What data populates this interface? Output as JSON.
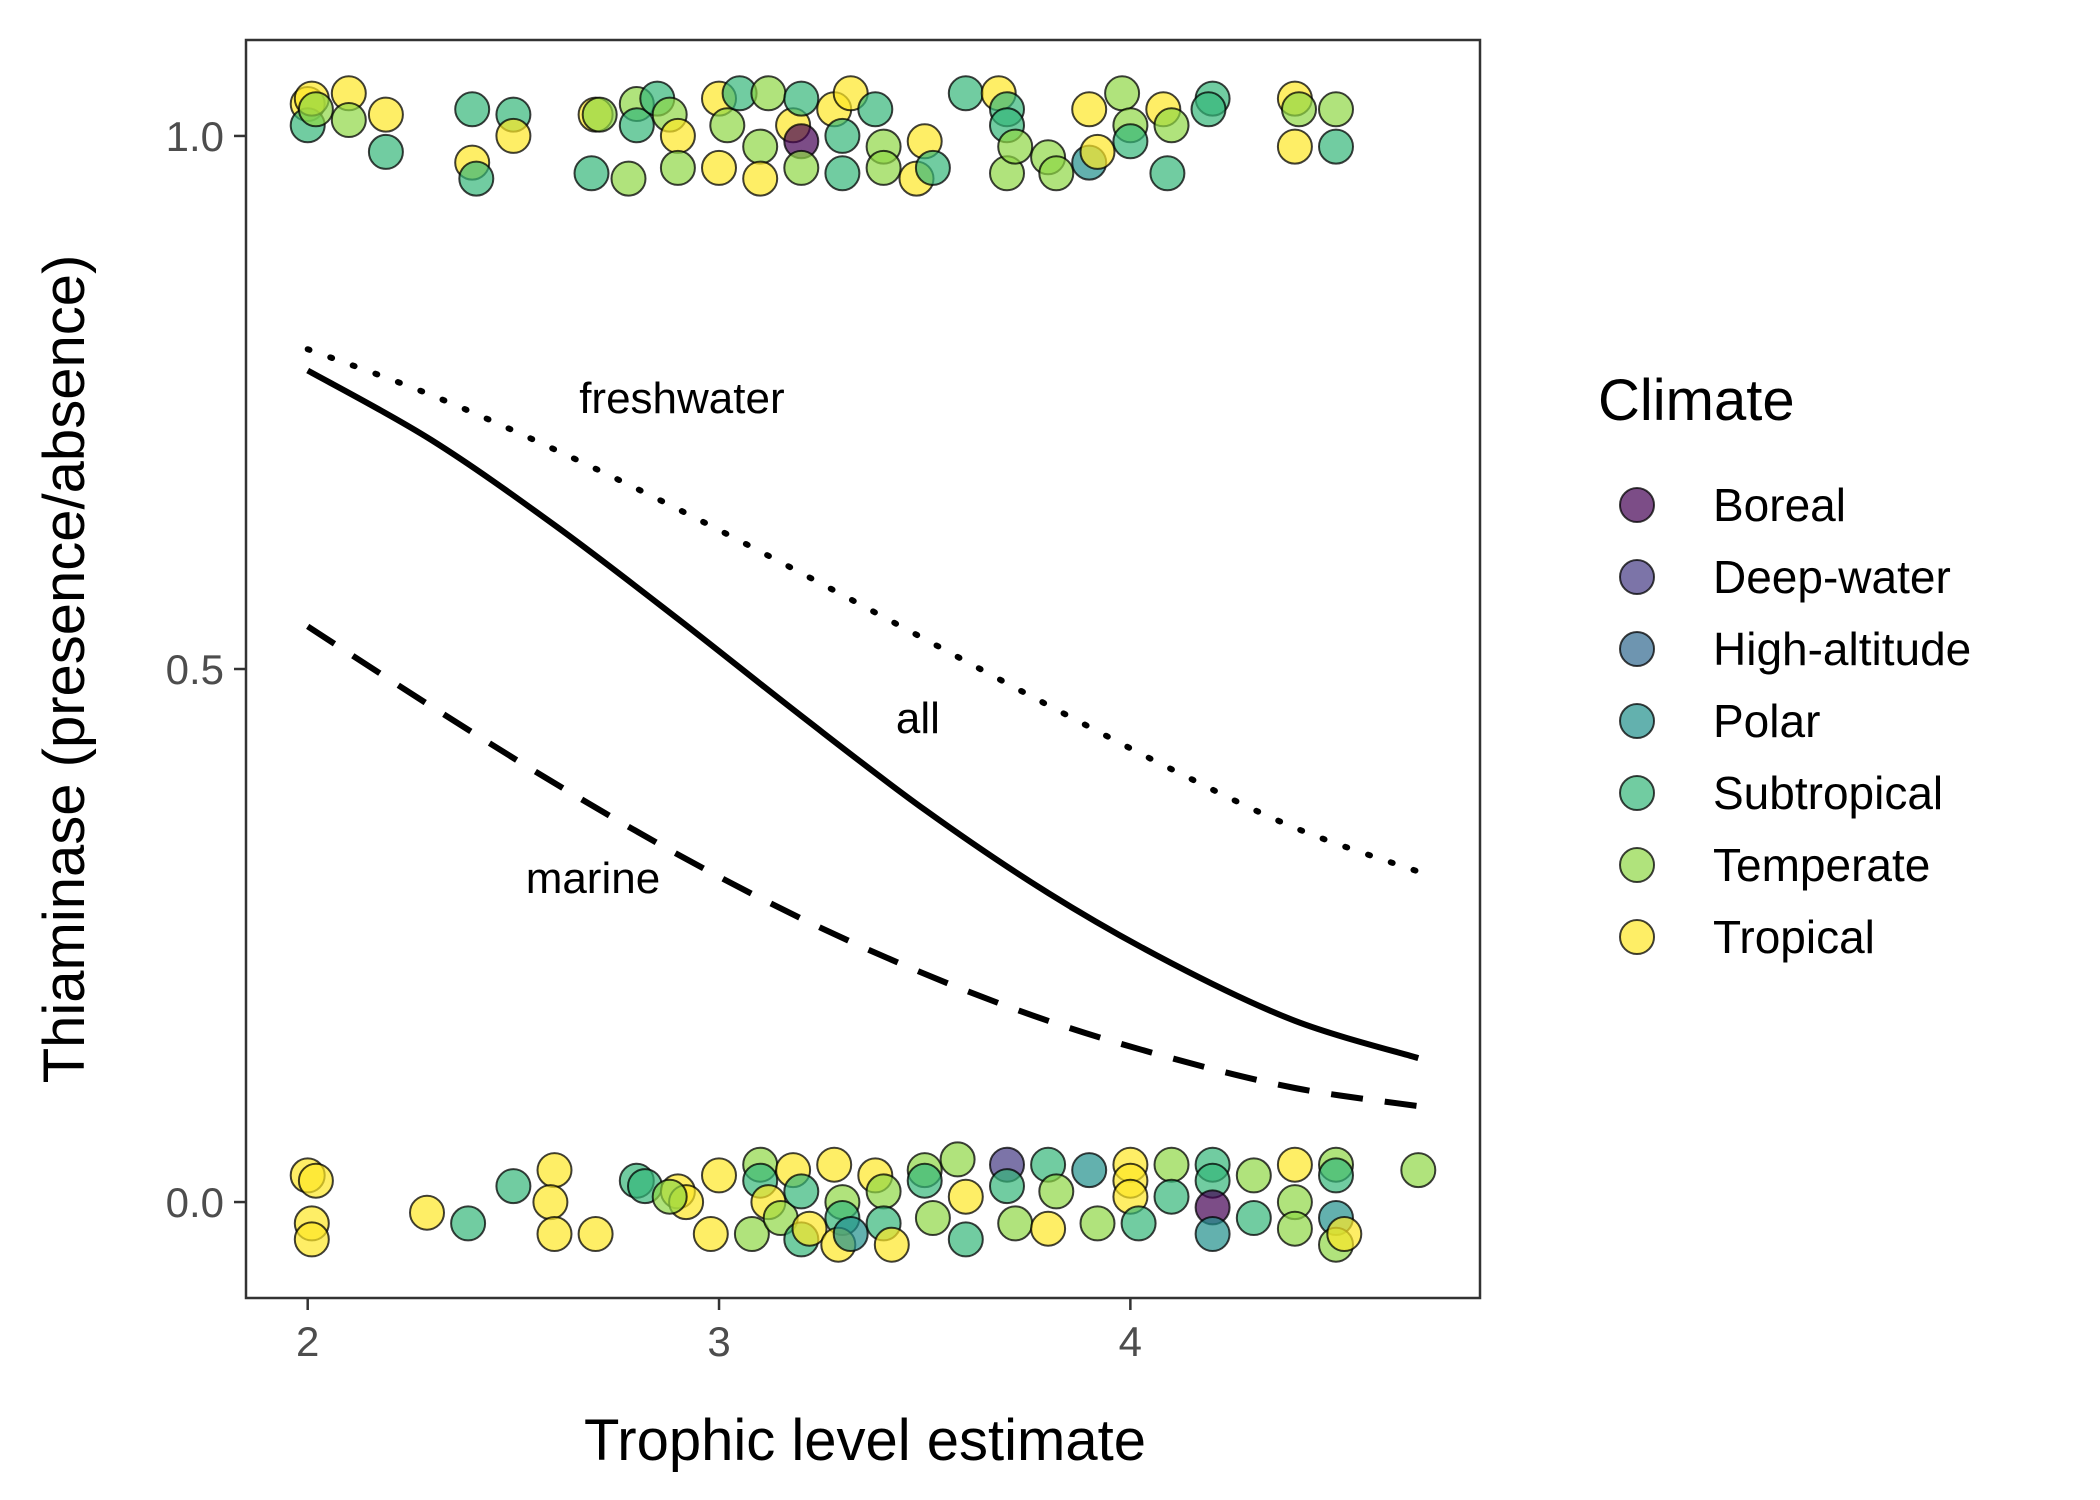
{
  "chart_data": {
    "type": "scatter",
    "xlabel": "Trophic level estimate",
    "ylabel": "Thiaminase (presence/absence)",
    "xlim": [
      1.85,
      4.85
    ],
    "ylim": [
      -0.09,
      1.09
    ],
    "x_ticks": [
      2,
      3,
      4
    ],
    "x_tick_labels": [
      "2",
      "3",
      "4"
    ],
    "y_ticks": [
      0,
      0.5,
      1
    ],
    "y_tick_labels": [
      "0.0",
      "0.5",
      "1.0"
    ],
    "grid": false,
    "legend": {
      "title": "Climate",
      "placement": "right",
      "entries": [
        {
          "name": "Boreal",
          "color": "#440154"
        },
        {
          "name": "Deep-water",
          "color": "#443983"
        },
        {
          "name": "High-altitude",
          "color": "#31688E"
        },
        {
          "name": "Polar",
          "color": "#21908C"
        },
        {
          "name": "Subtropical",
          "color": "#35B779"
        },
        {
          "name": "Temperate",
          "color": "#8FD744"
        },
        {
          "name": "Tropical",
          "color": "#FDE725"
        }
      ]
    },
    "lines": [
      {
        "label": "freshwater",
        "style": "dotted",
        "x": [
          2.0,
          2.3,
          2.6,
          2.9,
          3.2,
          3.5,
          3.8,
          4.1,
          4.4,
          4.7
        ],
        "y": [
          0.8,
          0.757,
          0.706,
          0.65,
          0.59,
          0.528,
          0.466,
          0.406,
          0.351,
          0.31
        ]
      },
      {
        "label": "all",
        "style": "solid",
        "x": [
          2.0,
          2.3,
          2.6,
          2.9,
          3.2,
          3.5,
          3.8,
          4.1,
          4.4,
          4.7
        ],
        "y": [
          0.78,
          0.715,
          0.635,
          0.547,
          0.456,
          0.368,
          0.29,
          0.224,
          0.17,
          0.135
        ]
      },
      {
        "label": "marine",
        "style": "dashed",
        "x": [
          2.0,
          2.3,
          2.6,
          2.9,
          3.2,
          3.5,
          3.8,
          4.1,
          4.4,
          4.7
        ],
        "y": [
          0.54,
          0.465,
          0.393,
          0.326,
          0.266,
          0.214,
          0.17,
          0.135,
          0.107,
          0.09
        ]
      }
    ],
    "annotations": [
      {
        "text": "freshwater",
        "x": 2.66,
        "y": 0.74
      },
      {
        "text": "all",
        "x": 3.43,
        "y": 0.44
      },
      {
        "text": "marine",
        "x": 2.53,
        "y": 0.29
      }
    ],
    "points": [
      {
        "x": 2.0,
        "y": 1.03,
        "climate": "Tropical"
      },
      {
        "x": 2.0,
        "y": 1.01,
        "climate": "Subtropical"
      },
      {
        "x": 2.01,
        "y": 1.035,
        "climate": "Tropical"
      },
      {
        "x": 2.02,
        "y": 1.025,
        "climate": "Temperate"
      },
      {
        "x": 2.1,
        "y": 1.04,
        "climate": "Tropical"
      },
      {
        "x": 2.1,
        "y": 1.015,
        "climate": "Temperate"
      },
      {
        "x": 2.19,
        "y": 1.02,
        "climate": "Tropical"
      },
      {
        "x": 2.19,
        "y": 0.985,
        "climate": "Subtropical"
      },
      {
        "x": 2.4,
        "y": 1.025,
        "climate": "Subtropical"
      },
      {
        "x": 2.4,
        "y": 0.975,
        "climate": "Tropical"
      },
      {
        "x": 2.41,
        "y": 0.96,
        "climate": "Subtropical"
      },
      {
        "x": 2.5,
        "y": 1.02,
        "climate": "Subtropical"
      },
      {
        "x": 2.5,
        "y": 1.0,
        "climate": "Tropical"
      },
      {
        "x": 2.69,
        "y": 0.965,
        "climate": "Subtropical"
      },
      {
        "x": 2.7,
        "y": 1.02,
        "climate": "Tropical"
      },
      {
        "x": 2.71,
        "y": 1.02,
        "climate": "Temperate"
      },
      {
        "x": 2.8,
        "y": 1.03,
        "climate": "Temperate"
      },
      {
        "x": 2.8,
        "y": 1.01,
        "climate": "Subtropical"
      },
      {
        "x": 2.78,
        "y": 0.96,
        "climate": "Temperate"
      },
      {
        "x": 2.85,
        "y": 1.035,
        "climate": "Subtropical"
      },
      {
        "x": 2.88,
        "y": 1.02,
        "climate": "Temperate"
      },
      {
        "x": 2.9,
        "y": 1.0,
        "climate": "Tropical"
      },
      {
        "x": 2.9,
        "y": 0.97,
        "climate": "Temperate"
      },
      {
        "x": 3.0,
        "y": 1.035,
        "climate": "Tropical"
      },
      {
        "x": 3.02,
        "y": 1.01,
        "climate": "Temperate"
      },
      {
        "x": 3.0,
        "y": 0.97,
        "climate": "Tropical"
      },
      {
        "x": 3.05,
        "y": 1.04,
        "climate": "Subtropical"
      },
      {
        "x": 3.1,
        "y": 0.99,
        "climate": "Temperate"
      },
      {
        "x": 3.12,
        "y": 1.04,
        "climate": "Temperate"
      },
      {
        "x": 3.1,
        "y": 0.96,
        "climate": "Tropical"
      },
      {
        "x": 3.18,
        "y": 1.01,
        "climate": "Tropical"
      },
      {
        "x": 3.2,
        "y": 0.995,
        "climate": "Boreal"
      },
      {
        "x": 3.2,
        "y": 1.035,
        "climate": "Subtropical"
      },
      {
        "x": 3.2,
        "y": 0.97,
        "climate": "Temperate"
      },
      {
        "x": 3.28,
        "y": 1.025,
        "climate": "Tropical"
      },
      {
        "x": 3.3,
        "y": 1.0,
        "climate": "Subtropical"
      },
      {
        "x": 3.3,
        "y": 0.965,
        "climate": "Subtropical"
      },
      {
        "x": 3.32,
        "y": 1.04,
        "climate": "Tropical"
      },
      {
        "x": 3.38,
        "y": 1.025,
        "climate": "Subtropical"
      },
      {
        "x": 3.4,
        "y": 0.99,
        "climate": "Temperate"
      },
      {
        "x": 3.4,
        "y": 0.97,
        "climate": "Temperate"
      },
      {
        "x": 3.48,
        "y": 0.96,
        "climate": "Tropical"
      },
      {
        "x": 3.5,
        "y": 0.995,
        "climate": "Tropical"
      },
      {
        "x": 3.52,
        "y": 0.97,
        "climate": "Subtropical"
      },
      {
        "x": 3.6,
        "y": 1.04,
        "climate": "Subtropical"
      },
      {
        "x": 3.68,
        "y": 1.04,
        "climate": "Tropical"
      },
      {
        "x": 3.7,
        "y": 1.025,
        "climate": "Subtropical"
      },
      {
        "x": 3.7,
        "y": 1.01,
        "climate": "Subtropical"
      },
      {
        "x": 3.7,
        "y": 0.965,
        "climate": "Temperate"
      },
      {
        "x": 3.72,
        "y": 0.99,
        "climate": "Temperate"
      },
      {
        "x": 3.8,
        "y": 0.98,
        "climate": "Temperate"
      },
      {
        "x": 3.82,
        "y": 0.965,
        "climate": "Temperate"
      },
      {
        "x": 3.9,
        "y": 1.025,
        "climate": "Tropical"
      },
      {
        "x": 3.9,
        "y": 0.975,
        "climate": "Polar"
      },
      {
        "x": 3.92,
        "y": 0.985,
        "climate": "Tropical"
      },
      {
        "x": 3.98,
        "y": 1.04,
        "climate": "Temperate"
      },
      {
        "x": 4.0,
        "y": 1.01,
        "climate": "Temperate"
      },
      {
        "x": 4.0,
        "y": 0.995,
        "climate": "Subtropical"
      },
      {
        "x": 4.08,
        "y": 1.025,
        "climate": "Tropical"
      },
      {
        "x": 4.1,
        "y": 1.01,
        "climate": "Temperate"
      },
      {
        "x": 4.09,
        "y": 0.965,
        "climate": "Subtropical"
      },
      {
        "x": 4.2,
        "y": 1.035,
        "climate": "Subtropical"
      },
      {
        "x": 4.19,
        "y": 1.025,
        "climate": "Subtropical"
      },
      {
        "x": 4.4,
        "y": 1.035,
        "climate": "Tropical"
      },
      {
        "x": 4.41,
        "y": 1.025,
        "climate": "Temperate"
      },
      {
        "x": 4.4,
        "y": 0.99,
        "climate": "Tropical"
      },
      {
        "x": 4.5,
        "y": 1.025,
        "climate": "Temperate"
      },
      {
        "x": 4.5,
        "y": 0.99,
        "climate": "Subtropical"
      },
      {
        "x": 2.0,
        "y": 0.025,
        "climate": "Tropical"
      },
      {
        "x": 2.02,
        "y": 0.02,
        "climate": "Tropical"
      },
      {
        "x": 2.01,
        "y": -0.02,
        "climate": "Tropical"
      },
      {
        "x": 2.01,
        "y": -0.035,
        "climate": "Tropical"
      },
      {
        "x": 2.29,
        "y": -0.01,
        "climate": "Tropical"
      },
      {
        "x": 2.39,
        "y": -0.02,
        "climate": "Subtropical"
      },
      {
        "x": 2.5,
        "y": 0.015,
        "climate": "Subtropical"
      },
      {
        "x": 2.6,
        "y": 0.03,
        "climate": "Tropical"
      },
      {
        "x": 2.59,
        "y": 0.0,
        "climate": "Tropical"
      },
      {
        "x": 2.6,
        "y": -0.03,
        "climate": "Tropical"
      },
      {
        "x": 2.7,
        "y": -0.03,
        "climate": "Tropical"
      },
      {
        "x": 2.8,
        "y": 0.02,
        "climate": "Subtropical"
      },
      {
        "x": 2.82,
        "y": 0.015,
        "climate": "Subtropical"
      },
      {
        "x": 2.9,
        "y": 0.01,
        "climate": "Tropical"
      },
      {
        "x": 2.92,
        "y": 0.0,
        "climate": "Tropical"
      },
      {
        "x": 2.88,
        "y": 0.005,
        "climate": "Temperate"
      },
      {
        "x": 3.0,
        "y": 0.025,
        "climate": "Tropical"
      },
      {
        "x": 2.98,
        "y": -0.03,
        "climate": "Tropical"
      },
      {
        "x": 3.08,
        "y": -0.03,
        "climate": "Temperate"
      },
      {
        "x": 3.1,
        "y": 0.035,
        "climate": "Temperate"
      },
      {
        "x": 3.1,
        "y": 0.02,
        "climate": "Subtropical"
      },
      {
        "x": 3.12,
        "y": 0.0,
        "climate": "Tropical"
      },
      {
        "x": 3.15,
        "y": -0.015,
        "climate": "Temperate"
      },
      {
        "x": 3.18,
        "y": 0.03,
        "climate": "Tropical"
      },
      {
        "x": 3.2,
        "y": 0.01,
        "climate": "Subtropical"
      },
      {
        "x": 3.2,
        "y": -0.035,
        "climate": "Subtropical"
      },
      {
        "x": 3.22,
        "y": -0.025,
        "climate": "Tropical"
      },
      {
        "x": 3.28,
        "y": 0.035,
        "climate": "Tropical"
      },
      {
        "x": 3.3,
        "y": 0.0,
        "climate": "Temperate"
      },
      {
        "x": 3.3,
        "y": -0.015,
        "climate": "Subtropical"
      },
      {
        "x": 3.29,
        "y": -0.04,
        "climate": "Tropical"
      },
      {
        "x": 3.32,
        "y": -0.03,
        "climate": "Polar"
      },
      {
        "x": 3.38,
        "y": 0.025,
        "climate": "Tropical"
      },
      {
        "x": 3.4,
        "y": 0.01,
        "climate": "Temperate"
      },
      {
        "x": 3.4,
        "y": -0.02,
        "climate": "Subtropical"
      },
      {
        "x": 3.42,
        "y": -0.04,
        "climate": "Tropical"
      },
      {
        "x": 3.5,
        "y": 0.03,
        "climate": "Temperate"
      },
      {
        "x": 3.5,
        "y": 0.02,
        "climate": "Subtropical"
      },
      {
        "x": 3.52,
        "y": -0.015,
        "climate": "Temperate"
      },
      {
        "x": 3.58,
        "y": 0.04,
        "climate": "Temperate"
      },
      {
        "x": 3.6,
        "y": 0.005,
        "climate": "Tropical"
      },
      {
        "x": 3.6,
        "y": -0.035,
        "climate": "Subtropical"
      },
      {
        "x": 3.7,
        "y": 0.035,
        "climate": "Deep-water"
      },
      {
        "x": 3.7,
        "y": 0.015,
        "climate": "Subtropical"
      },
      {
        "x": 3.72,
        "y": -0.02,
        "climate": "Temperate"
      },
      {
        "x": 3.8,
        "y": 0.035,
        "climate": "Subtropical"
      },
      {
        "x": 3.8,
        "y": -0.025,
        "climate": "Tropical"
      },
      {
        "x": 3.82,
        "y": 0.01,
        "climate": "Temperate"
      },
      {
        "x": 3.9,
        "y": 0.03,
        "climate": "Polar"
      },
      {
        "x": 3.92,
        "y": -0.02,
        "climate": "Temperate"
      },
      {
        "x": 4.0,
        "y": 0.035,
        "climate": "Tropical"
      },
      {
        "x": 4.0,
        "y": 0.02,
        "climate": "Tropical"
      },
      {
        "x": 4.0,
        "y": 0.005,
        "climate": "Tropical"
      },
      {
        "x": 4.02,
        "y": -0.02,
        "climate": "Subtropical"
      },
      {
        "x": 4.1,
        "y": 0.035,
        "climate": "Temperate"
      },
      {
        "x": 4.1,
        "y": 0.005,
        "climate": "Subtropical"
      },
      {
        "x": 4.2,
        "y": 0.035,
        "climate": "Subtropical"
      },
      {
        "x": 4.2,
        "y": 0.02,
        "climate": "Subtropical"
      },
      {
        "x": 4.2,
        "y": -0.005,
        "climate": "Boreal"
      },
      {
        "x": 4.2,
        "y": -0.03,
        "climate": "Polar"
      },
      {
        "x": 4.3,
        "y": 0.025,
        "climate": "Temperate"
      },
      {
        "x": 4.3,
        "y": -0.015,
        "climate": "Subtropical"
      },
      {
        "x": 4.4,
        "y": 0.035,
        "climate": "Tropical"
      },
      {
        "x": 4.4,
        "y": 0.0,
        "climate": "Temperate"
      },
      {
        "x": 4.4,
        "y": -0.025,
        "climate": "Temperate"
      },
      {
        "x": 4.5,
        "y": 0.035,
        "climate": "Temperate"
      },
      {
        "x": 4.5,
        "y": 0.025,
        "climate": "Subtropical"
      },
      {
        "x": 4.5,
        "y": -0.015,
        "climate": "Polar"
      },
      {
        "x": 4.5,
        "y": -0.04,
        "climate": "Temperate"
      },
      {
        "x": 4.52,
        "y": -0.03,
        "climate": "Tropical"
      },
      {
        "x": 4.7,
        "y": 0.03,
        "climate": "Temperate"
      }
    ]
  }
}
